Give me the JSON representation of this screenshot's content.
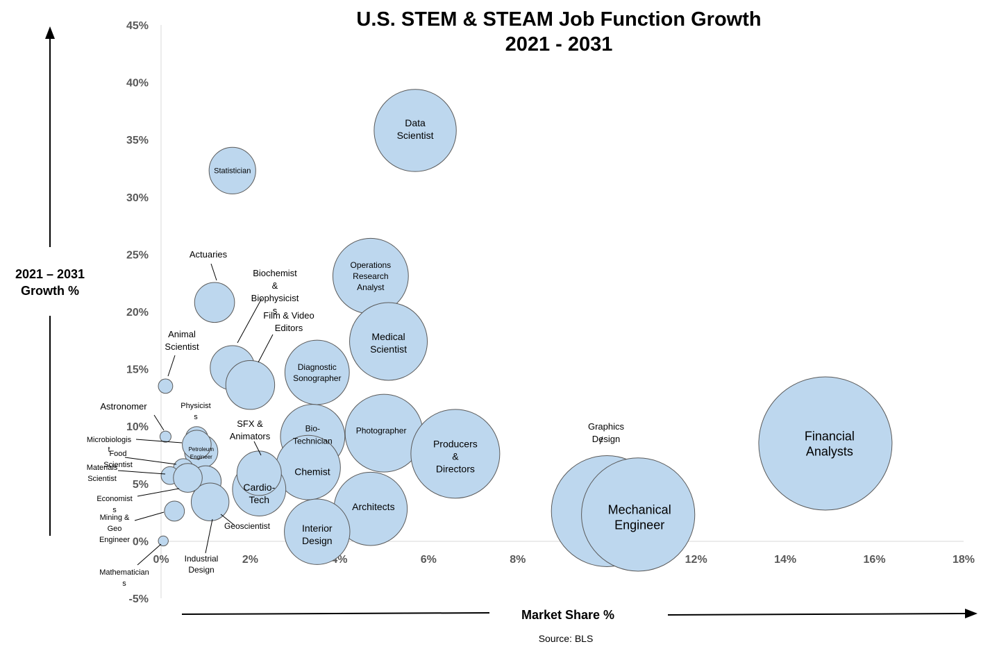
{
  "chart_data": {
    "type": "bubble",
    "title": "U.S. STEM & STEAM Job Function Growth",
    "subtitle": "2021 - 2031",
    "xlabel": "Market Share %",
    "ylabel_line1": "2021 – 2031",
    "ylabel_line2": "Growth %",
    "source": "Source: BLS",
    "xlim": [
      0,
      18
    ],
    "ylim": [
      -5,
      45
    ],
    "x_ticks": [
      "0%",
      "2%",
      "4%",
      "6%",
      "8%",
      "10%",
      "12%",
      "14%",
      "16%",
      "18%"
    ],
    "y_ticks": [
      "-5%",
      "0%",
      "5%",
      "10%",
      "15%",
      "20%",
      "25%",
      "30%",
      "35%",
      "40%",
      "45%"
    ],
    "bubble_color": "#bdd7ee",
    "bubble_stroke": "#595959",
    "points": [
      {
        "label": "Financial Analysts",
        "x": 14.9,
        "y": 8.5,
        "size": 12.0
      },
      {
        "label": "Graphics Design",
        "x": 10.0,
        "y": 2.6,
        "size": 10.0
      },
      {
        "label": "Mechanical Engineer",
        "x": 10.7,
        "y": 2.3,
        "size": 10.2
      },
      {
        "label": "Data Scientist",
        "x": 5.7,
        "y": 35.8,
        "size": 7.4
      },
      {
        "label": "Operations Research Analyst",
        "x": 4.7,
        "y": 23.1,
        "size": 6.8
      },
      {
        "label": "Medical Scientist",
        "x": 5.1,
        "y": 17.4,
        "size": 7.0
      },
      {
        "label": "Photographer",
        "x": 5.0,
        "y": 9.4,
        "size": 7.0
      },
      {
        "label": "Producers & Directors",
        "x": 6.6,
        "y": 7.6,
        "size": 8.0
      },
      {
        "label": "Architects",
        "x": 4.7,
        "y": 2.8,
        "size": 6.6
      },
      {
        "label": "Diagnostic Sonographer",
        "x": 3.5,
        "y": 14.7,
        "size": 5.8
      },
      {
        "label": "Bio-Technician",
        "x": 3.4,
        "y": 9.1,
        "size": 5.8
      },
      {
        "label": "Chemist",
        "x": 3.3,
        "y": 6.4,
        "size": 5.8
      },
      {
        "label": "Interior Design",
        "x": 3.5,
        "y": 0.8,
        "size": 5.9
      },
      {
        "label": "Cardio-Tech",
        "x": 2.2,
        "y": 4.5,
        "size": 4.8
      },
      {
        "label": "SFX & Animators",
        "x": 2.2,
        "y": 5.9,
        "size": 4.0
      },
      {
        "label": "Statistician",
        "x": 1.6,
        "y": 32.3,
        "size": 4.2
      },
      {
        "label": "Actuaries",
        "x": 1.2,
        "y": 20.8,
        "size": 3.6
      },
      {
        "label": "Biochemist & Biophysicists",
        "x": 1.6,
        "y": 15.1,
        "size": 4.0
      },
      {
        "label": "Film & Video Editors",
        "x": 2.0,
        "y": 13.6,
        "size": 4.4
      },
      {
        "label": "Animal Scientist",
        "x": 0.1,
        "y": 13.5,
        "size": 1.3
      },
      {
        "label": "Astronomer",
        "x": 0.1,
        "y": 9.1,
        "size": 1.0
      },
      {
        "label": "Physicists",
        "x": 0.8,
        "y": 9.0,
        "size": 2.0
      },
      {
        "label": "Petroleum Engineer",
        "x": 0.9,
        "y": 7.8,
        "size": 3.0
      },
      {
        "label": "Microbiologist",
        "x": 0.8,
        "y": 8.4,
        "size": 2.6
      },
      {
        "label": "Food Scientist",
        "x": 0.5,
        "y": 6.3,
        "size": 1.8
      },
      {
        "label": "Materials Scientist",
        "x": 0.2,
        "y": 5.7,
        "size": 1.6
      },
      {
        "label": "Economists",
        "x": 1.0,
        "y": 5.2,
        "size": 2.8
      },
      {
        "label": "Mining & Geo Engineer",
        "x": 0.3,
        "y": 2.6,
        "size": 1.8
      },
      {
        "label": "Geoscientist",
        "x": 1.1,
        "y": 3.4,
        "size": 3.4
      },
      {
        "label": "Industrial Design",
        "x": 0.6,
        "y": 5.5,
        "size": 2.6
      },
      {
        "label": "Mathematicians",
        "x": 0.05,
        "y": 0.0,
        "size": 0.9
      }
    ]
  }
}
